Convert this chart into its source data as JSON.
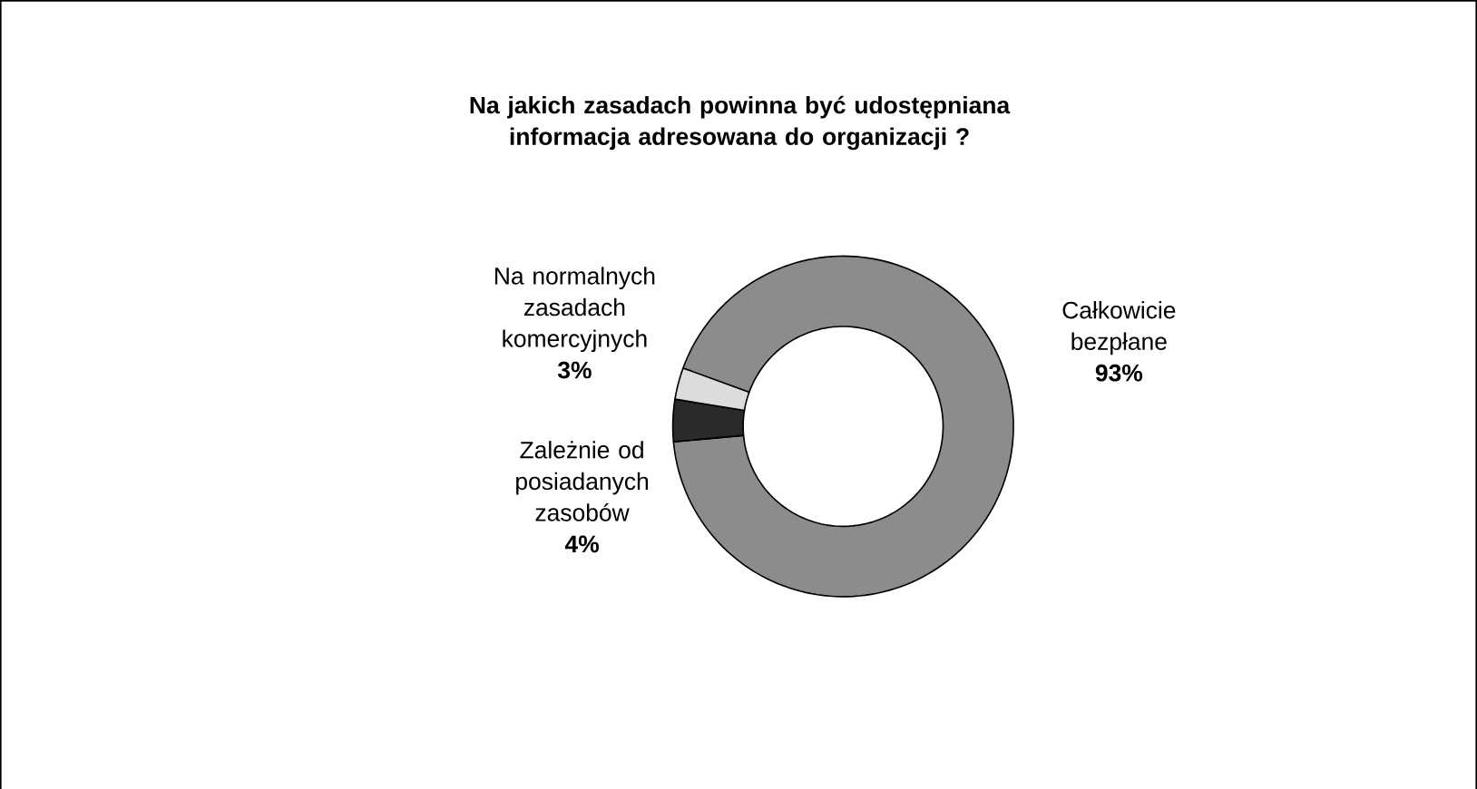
{
  "chart_data": {
    "type": "donut",
    "title": "Na jakich zasadach powinna być udostępniana informacja adresowana do organizacji ?",
    "categories": [
      "Całkowicie bezpłane",
      "Zależnie od posiadanych zasobów",
      "Na normalnych zasadach komercyjnych"
    ],
    "values": [
      93,
      4,
      3
    ],
    "value_labels": [
      "93%",
      "4%",
      "3%"
    ],
    "colors": [
      "#8c8c8c",
      "#2a2a2a",
      "#dcdcdc"
    ]
  }
}
